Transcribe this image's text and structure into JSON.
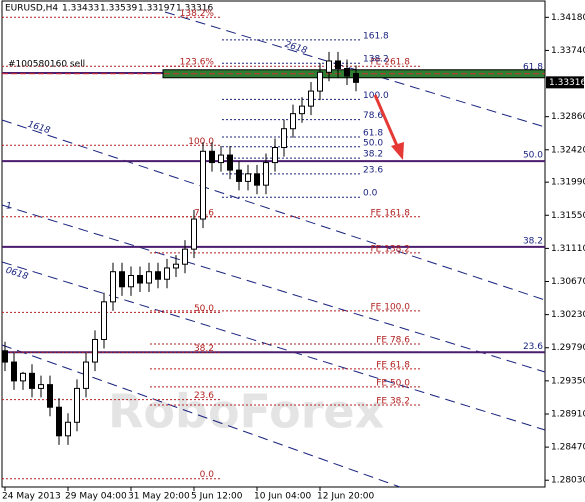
{
  "chart_data": {
    "type": "candlestick",
    "title": "EURUSD,H4",
    "quote": [
      1.33433,
      1.33539,
      1.33197,
      1.33316
    ],
    "categories": [
      "24 May 2013",
      null,
      null,
      null,
      null,
      null,
      null,
      "29 May 04:00",
      null,
      null,
      null,
      null,
      null,
      null,
      "31 May 20:00",
      null,
      null,
      null,
      null,
      null,
      null,
      "5 Jun 12:00",
      null,
      null,
      null,
      null,
      null,
      null,
      "10 Jun 04:00",
      null,
      null,
      null,
      null,
      null,
      null,
      "12 Jun 20:00",
      null,
      null,
      null,
      null
    ],
    "open": [
      1.2975,
      1.296,
      1.2935,
      1.2945,
      1.2925,
      1.293,
      1.29,
      1.2862,
      1.288,
      1.2925,
      1.296,
      1.299,
      1.304,
      1.308,
      1.306,
      1.3075,
      1.3065,
      1.308,
      1.307,
      1.3085,
      1.309,
      1.311,
      1.315,
      1.324,
      1.3225,
      1.3235,
      1.3215,
      1.32,
      1.321,
      1.3195,
      1.3225,
      1.3245,
      1.327,
      1.329,
      1.33,
      1.332,
      1.3345,
      1.336,
      1.335,
      1.33433
    ],
    "high": [
      1.2987,
      1.2972,
      1.2947,
      1.2957,
      1.2942,
      1.2942,
      1.2912,
      1.2892,
      1.2937,
      1.2972,
      1.3002,
      1.3052,
      1.3092,
      1.3092,
      1.3087,
      1.3087,
      1.3092,
      1.3092,
      1.3097,
      1.3102,
      1.3122,
      1.3162,
      1.3252,
      1.3252,
      1.3247,
      1.3247,
      1.3227,
      1.3222,
      1.3222,
      1.3237,
      1.3257,
      1.3282,
      1.3302,
      1.3312,
      1.3332,
      1.3357,
      1.3372,
      1.3372,
      1.3362,
      1.33539
    ],
    "low": [
      1.2948,
      1.2923,
      1.2923,
      1.2913,
      1.2913,
      1.2888,
      1.285,
      1.285,
      1.2868,
      1.2913,
      1.2948,
      1.2978,
      1.3028,
      1.3048,
      1.3048,
      1.3053,
      1.3053,
      1.3058,
      1.3058,
      1.3073,
      1.3078,
      1.3098,
      1.3138,
      1.3213,
      1.3213,
      1.3203,
      1.3188,
      1.3188,
      1.3183,
      1.3183,
      1.3213,
      1.3233,
      1.3258,
      1.3278,
      1.3288,
      1.3308,
      1.3333,
      1.3338,
      1.3328,
      1.33197
    ],
    "close": [
      1.296,
      1.2935,
      1.2945,
      1.2925,
      1.293,
      1.29,
      1.2862,
      1.288,
      1.2925,
      1.296,
      1.299,
      1.304,
      1.308,
      1.306,
      1.3075,
      1.3065,
      1.308,
      1.307,
      1.3085,
      1.309,
      1.311,
      1.315,
      1.324,
      1.3225,
      1.3235,
      1.3215,
      1.32,
      1.321,
      1.3195,
      1.3225,
      1.3245,
      1.327,
      1.329,
      1.33,
      1.332,
      1.3345,
      1.336,
      1.335,
      1.334,
      1.33316
    ],
    "ylim": [
      1.2794,
      1.3441
    ],
    "yticks": [
      {
        "value": 1.3418,
        "label": "1.34180"
      },
      {
        "value": 1.3374,
        "label": "1.33740"
      },
      {
        "value": 1.3286,
        "label": "1.32860"
      },
      {
        "value": 1.3242,
        "label": "1.32420"
      },
      {
        "value": 1.3199,
        "label": "1.31990"
      },
      {
        "value": 1.3155,
        "label": "1.31550"
      },
      {
        "value": 1.3111,
        "label": "1.31110"
      },
      {
        "value": 1.3067,
        "label": "1.30670"
      },
      {
        "value": 1.3023,
        "label": "1.30230"
      },
      {
        "value": 1.2979,
        "label": "1.29790"
      },
      {
        "value": 1.2935,
        "label": "1.29350"
      },
      {
        "value": 1.2891,
        "label": "1.28910"
      },
      {
        "value": 1.2847,
        "label": "1.28470"
      },
      {
        "value": 1.2803,
        "label": "1.28030"
      }
    ],
    "current_price": 1.33316,
    "order": {
      "label": "#100580160 sell",
      "value": 1.3343
    },
    "fib_levels": [
      {
        "label": "161.8",
        "value": 1.3388
      },
      {
        "label": "138.2",
        "value": 1.3357
      },
      {
        "label": "100.0",
        "value": 1.3309
      },
      {
        "label": "78.6",
        "value": 1.3282
      },
      {
        "label": "61.8",
        "value": 1.3259
      },
      {
        "label": "50.0",
        "value": 1.3246
      },
      {
        "label": "38.2",
        "value": 1.3231
      },
      {
        "label": "23.6",
        "value": 1.321
      },
      {
        "label": "0.0",
        "value": 1.3179
      }
    ],
    "retracement_levels": [
      {
        "label": "138.2%",
        "value": 1.3418
      },
      {
        "label": "123.6%",
        "value": 1.3353
      },
      {
        "label": "100.0",
        "value": 1.3248
      },
      {
        "label": "78.6",
        "value": 1.3153
      },
      {
        "label": "50.0",
        "value": 1.3026
      },
      {
        "label": "38.2",
        "value": 1.2973
      },
      {
        "label": "23.6",
        "value": 1.291
      },
      {
        "label": "0.0",
        "value": 1.2805
      }
    ],
    "expansion_levels": [
      {
        "label": "FE 261.8",
        "value": 1.3353
      },
      {
        "label": "FE 161.8",
        "value": 1.3153
      },
      {
        "label": "FE 138.2",
        "value": 1.3105
      },
      {
        "label": "FE 100.0",
        "value": 1.3028
      },
      {
        "label": "FE 78.6",
        "value": 1.2984
      },
      {
        "label": "FE 61.8",
        "value": 1.2951
      },
      {
        "label": "FE 50.0",
        "value": 1.2927
      },
      {
        "label": "FE 38.2",
        "value": 1.2903
      }
    ],
    "channel_levels": [
      {
        "label": "61.8",
        "value": 1.3344
      },
      {
        "label": "50.0",
        "value": 1.3227
      },
      {
        "label": "38.2",
        "value": 1.3113
      },
      {
        "label": "23.6",
        "value": 1.2973
      }
    ],
    "pitchfork_labels": [
      "2618",
      "1618",
      "1",
      "0618"
    ],
    "watermark": "RoboForex"
  }
}
